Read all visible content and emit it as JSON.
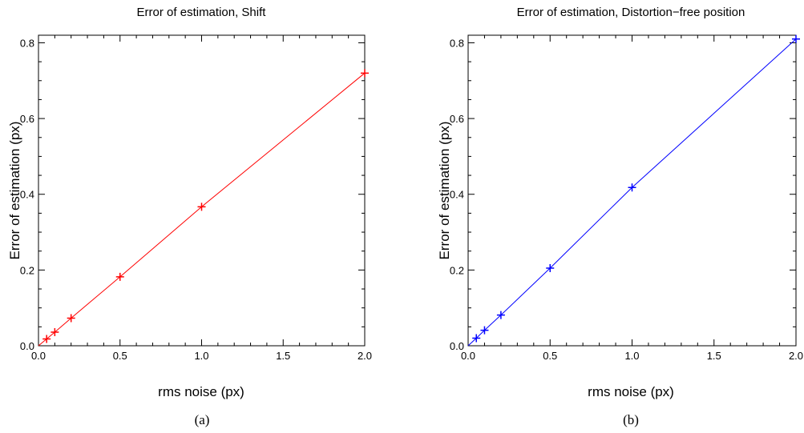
{
  "chart_data": [
    {
      "type": "line",
      "panel_label": "(a)",
      "title": "Error of estimation, Shift",
      "xlabel": "rms noise (px)",
      "ylabel": "Error of estimation (px)",
      "xlim": [
        0,
        2.0
      ],
      "ylim": [
        0,
        0.82
      ],
      "xticks": [
        "0.0",
        "0.5",
        "1.0",
        "1.5",
        "2.0"
      ],
      "yticks": [
        "0.0",
        "0.2",
        "0.4",
        "0.6",
        "0.8"
      ],
      "grid": false,
      "color": "#ff0000",
      "series": [
        {
          "x": [
            0.05,
            0.1,
            0.2,
            0.5,
            1.0,
            2.0
          ],
          "y": [
            0.018,
            0.036,
            0.073,
            0.182,
            0.367,
            0.72
          ]
        }
      ]
    },
    {
      "type": "line",
      "panel_label": "(b)",
      "title": "Error of estimation, Distortion−free position",
      "xlabel": "rms noise (px)",
      "ylabel": "Error of estimation (px)",
      "xlim": [
        0,
        2.0
      ],
      "ylim": [
        0,
        0.82
      ],
      "xticks": [
        "0.0",
        "0.5",
        "1.0",
        "1.5",
        "2.0"
      ],
      "yticks": [
        "0.0",
        "0.2",
        "0.4",
        "0.6",
        "0.8"
      ],
      "grid": false,
      "color": "#0000ff",
      "series": [
        {
          "x": [
            0.05,
            0.1,
            0.2,
            0.5,
            1.0,
            2.0
          ],
          "y": [
            0.02,
            0.041,
            0.081,
            0.205,
            0.418,
            0.81
          ]
        }
      ]
    }
  ]
}
